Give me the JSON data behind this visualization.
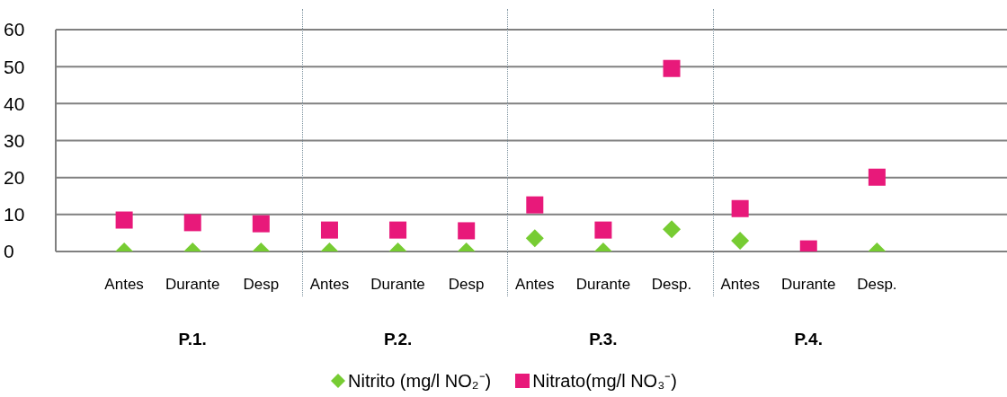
{
  "chart_data": {
    "type": "scatter",
    "categories": [
      "Antes",
      "Durante",
      "Desp",
      "Antes",
      "Durante",
      "Desp",
      "Antes",
      "Durante",
      "Desp.",
      "Antes",
      "Durante",
      "Desp."
    ],
    "ylim": [
      0,
      60
    ],
    "yticks": [
      0,
      10,
      20,
      30,
      40,
      50,
      60
    ],
    "grid": "y",
    "annotations": [
      "P.1.",
      "P.2.",
      "P.3.",
      "P.4."
    ],
    "legend": "bottom",
    "series": [
      {
        "name": "Nitrito (mg/l NO₂⁻)",
        "color": "#77cc33",
        "marker": "diamond",
        "values": [
          0,
          0,
          0,
          0,
          0,
          0,
          3.6,
          0,
          6,
          2.9,
          null,
          0
        ]
      },
      {
        "name": "Nitrato(mg/l NO₃⁻)",
        "color": "#e8197a",
        "marker": "square",
        "values": [
          8.5,
          7.8,
          7.5,
          5.8,
          5.8,
          5.6,
          12.6,
          5.8,
          49.5,
          11.6,
          0.7,
          20.1
        ]
      }
    ]
  }
}
